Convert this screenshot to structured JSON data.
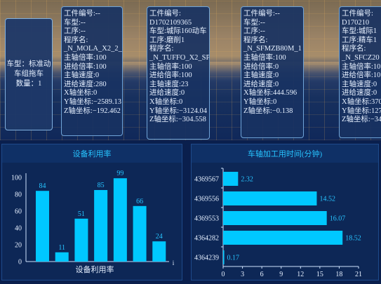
{
  "vehicle": {
    "type_label": "车型：标准动车组拖车",
    "count_label": "数量：1"
  },
  "cards": [
    {
      "lines": [
        "工件编号:--",
        "车型:--",
        "工序:--",
        "程序名:",
        "_N_MOLA_X2_2_1",
        "主轴倍率:100",
        "进给倍率:100",
        "主轴速度:0",
        "进给速度:280",
        "X轴坐标:0",
        "Y轴坐标:−2589.13",
        "Z轴坐标:−192.462"
      ]
    },
    {
      "lines": [
        "工件编号:",
        "D1702109365",
        "车型:城际160动车",
        "工序:磨削1",
        "程序名:",
        "_N_TUFFO_X2_SP",
        "主轴倍率:100",
        "进给倍率:100",
        "主轴速度:23",
        "进给速度:0",
        "X轴坐标:0",
        "Y轴坐标:−3124.04",
        "Z轴坐标:−304.558"
      ]
    },
    {
      "lines": [
        "工件编号:--",
        "车型:--",
        "工序:--",
        "程序名:",
        "_N_SFMZB80M_1",
        "主轴倍率:100",
        "进给倍率:0",
        "主轴速度:0",
        "进给速度:0",
        "X轴坐标:444.596",
        "Y轴坐标:0",
        "Z轴坐标:−0.138"
      ]
    },
    {
      "lines": [
        "工件编号:",
        "D170210",
        "车型:城际1",
        "工序:精车1",
        "程序名:",
        "_N_SFCZ20",
        "主轴倍率:10",
        "进给倍率:10",
        "主轴速度:0",
        "进给速度:0",
        "X轴坐标:370",
        "Y轴坐标:127",
        "Z轴坐标:−34"
      ]
    }
  ],
  "utilization": {
    "title": "设备利用率",
    "chart_data": {
      "type": "bar",
      "categories": [
        "1",
        "2",
        "3",
        "4",
        "5",
        "6",
        "7"
      ],
      "values": [
        84,
        11,
        51,
        85,
        99,
        66,
        24
      ],
      "y_ticks": [
        "0",
        "20",
        "40",
        "60",
        "80",
        "100"
      ],
      "ylim": [
        0,
        100
      ],
      "xlabel": "设备利用率",
      "x_end_label": "i",
      "color": "#00c8ff"
    }
  },
  "axle_time": {
    "title": "车轴加工用时间(分钟)",
    "chart_data": {
      "type": "bar",
      "orientation": "horizontal",
      "categories": [
        "4369567",
        "4369556",
        "4369553",
        "4364282",
        "4364239"
      ],
      "values": [
        2.32,
        14.52,
        16.07,
        18.52,
        0.17
      ],
      "value_labels": [
        "2.32",
        "14.52",
        "16.07",
        "18.52",
        "0.17"
      ],
      "x_ticks": [
        "0",
        "3",
        "6",
        "9",
        "12",
        "15",
        "18",
        "21"
      ],
      "xlim": [
        0,
        21
      ],
      "color": "#00c8ff"
    }
  }
}
